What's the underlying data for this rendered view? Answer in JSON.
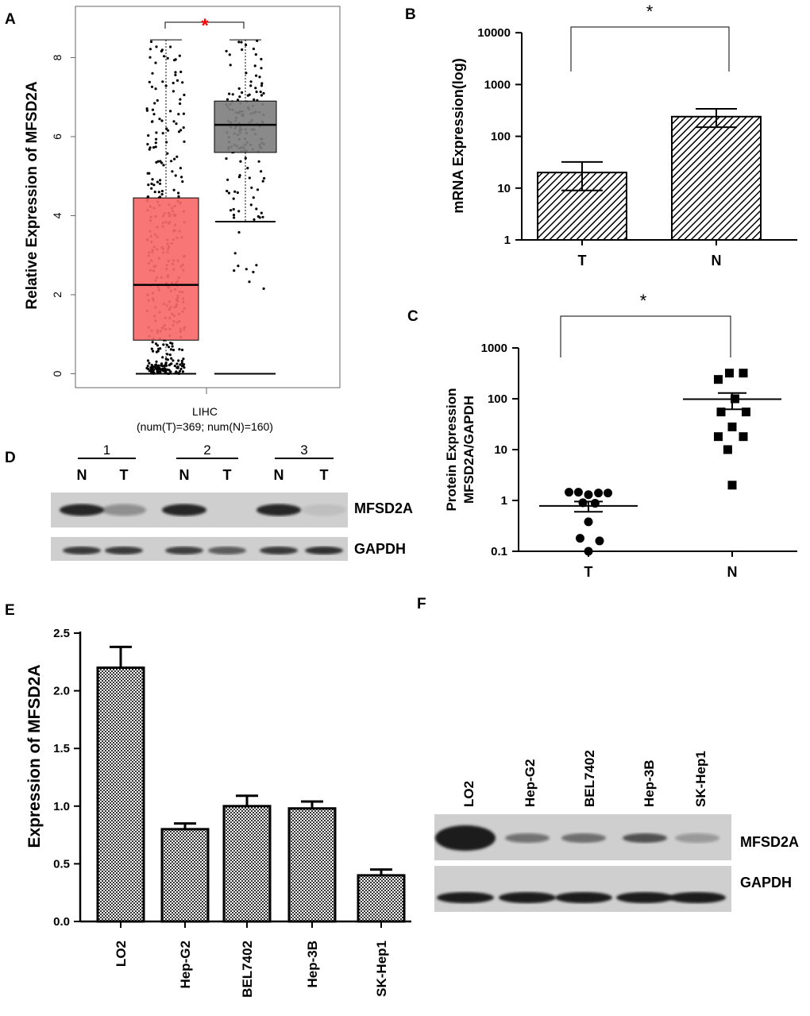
{
  "colors": {
    "tumor_box": "#f86a6a",
    "normal_box": "#808080",
    "star_red": "#ff0000",
    "ink": "#000000",
    "blot_bg": "#cfcfcf",
    "blot_band": "#1c1c1c"
  },
  "chart_data": [
    {
      "panel": "A",
      "type": "box",
      "ylabel": "Relative Expression of MFSD2A",
      "xlabel": "LIHC",
      "subtitle": "(num(T)=369; num(N)=160)",
      "significance": "*",
      "ylim": [
        -0.3,
        9.3
      ],
      "yticks": [
        "0",
        "2",
        "4",
        "6",
        "8"
      ],
      "groups": [
        {
          "name": "T",
          "n": 369,
          "whisker_low": 0,
          "q1": 0.85,
          "median": 2.25,
          "q3": 4.45,
          "whisker_high": 8.45,
          "color": "tumor_box"
        },
        {
          "name": "N",
          "n": 160,
          "whisker_low": 3.85,
          "q1": 5.6,
          "median": 6.3,
          "q3": 6.9,
          "whisker_high": 8.45,
          "color": "normal_box"
        }
      ]
    },
    {
      "panel": "B",
      "type": "bar",
      "scale": "log",
      "ylabel": "mRNA Expression(log)",
      "categories": [
        "T",
        "N"
      ],
      "values": [
        20,
        240
      ],
      "errors_low": [
        9,
        150
      ],
      "errors_high": [
        32,
        340
      ],
      "ylim": [
        1,
        10000
      ],
      "yticks": [
        "1",
        "10",
        "100",
        "1000",
        "10000"
      ],
      "significance": "*"
    },
    {
      "panel": "C",
      "type": "scatter",
      "scale": "log",
      "ylabel_line1": "Protein Expression",
      "ylabel_line2": "MFSD2A/GAPDH",
      "categories": [
        "T",
        "N"
      ],
      "ylim": [
        0.1,
        1000
      ],
      "yticks": [
        "0.1",
        "1",
        "10",
        "100",
        "1000"
      ],
      "significance": "*",
      "series": [
        {
          "name": "T",
          "marker": "circle",
          "mean": 0.78,
          "sem_low": 0.6,
          "sem_high": 0.95,
          "points": [
            {
              "x": -0.35,
              "y": 1.45
            },
            {
              "x": -0.18,
              "y": 1.45
            },
            {
              "x": 0.0,
              "y": 1.3
            },
            {
              "x": 0.18,
              "y": 1.4
            },
            {
              "x": 0.35,
              "y": 1.4
            },
            {
              "x": -0.1,
              "y": 0.9
            },
            {
              "x": 0.12,
              "y": 0.88
            },
            {
              "x": 0.0,
              "y": 0.38
            },
            {
              "x": -0.15,
              "y": 0.18
            },
            {
              "x": 0.2,
              "y": 0.16
            },
            {
              "x": 0.0,
              "y": 0.1
            }
          ]
        },
        {
          "name": "N",
          "marker": "square",
          "mean": 98,
          "sem_low": 62,
          "sem_high": 130,
          "points": [
            {
              "x": -0.05,
              "y": 320
            },
            {
              "x": 0.2,
              "y": 320
            },
            {
              "x": -0.25,
              "y": 240
            },
            {
              "x": 0.05,
              "y": 100
            },
            {
              "x": -0.2,
              "y": 55
            },
            {
              "x": 0.25,
              "y": 55
            },
            {
              "x": 0.0,
              "y": 28
            },
            {
              "x": -0.25,
              "y": 18
            },
            {
              "x": 0.2,
              "y": 18
            },
            {
              "x": -0.08,
              "y": 10
            },
            {
              "x": 0.0,
              "y": 2
            }
          ]
        }
      ]
    },
    {
      "panel": "E",
      "type": "bar",
      "ylabel": "Expression of MFSD2A",
      "categories": [
        "LO2",
        "Hep-G2",
        "BEL7402",
        "Hep-3B",
        "SK-Hep1"
      ],
      "values": [
        2.2,
        0.8,
        1.0,
        0.98,
        0.4
      ],
      "errors": [
        0.18,
        0.05,
        0.09,
        0.06,
        0.05
      ],
      "ylim": [
        0,
        2.5
      ],
      "yticks": [
        "0.0",
        "0.5",
        "1.0",
        "1.5",
        "2.0",
        "2.5"
      ]
    }
  ],
  "panel_labels": {
    "a": "A",
    "b": "B",
    "c": "C",
    "d": "D",
    "e": "E",
    "f": "F"
  },
  "blot_d": {
    "pairs": [
      "1",
      "2",
      "3"
    ],
    "lanes": [
      "N",
      "T",
      "N",
      "T",
      "N",
      "T"
    ],
    "rows": [
      {
        "label": "MFSD2A",
        "intensity": [
          0.95,
          0.35,
          0.95,
          0.0,
          0.95,
          0.08
        ]
      },
      {
        "label": "GAPDH",
        "intensity": [
          0.85,
          0.85,
          0.8,
          0.65,
          0.85,
          0.9
        ]
      }
    ]
  },
  "blot_f": {
    "lanes": [
      "LO2",
      "Hep-G2",
      "BEL7402",
      "Hep-3B",
      "SK-Hep1"
    ],
    "rows": [
      {
        "label": "MFSD2A",
        "intensity": [
          1.0,
          0.5,
          0.55,
          0.7,
          0.3
        ]
      },
      {
        "label": "GAPDH",
        "intensity": [
          1.0,
          1.0,
          1.0,
          1.0,
          1.0
        ]
      }
    ]
  }
}
